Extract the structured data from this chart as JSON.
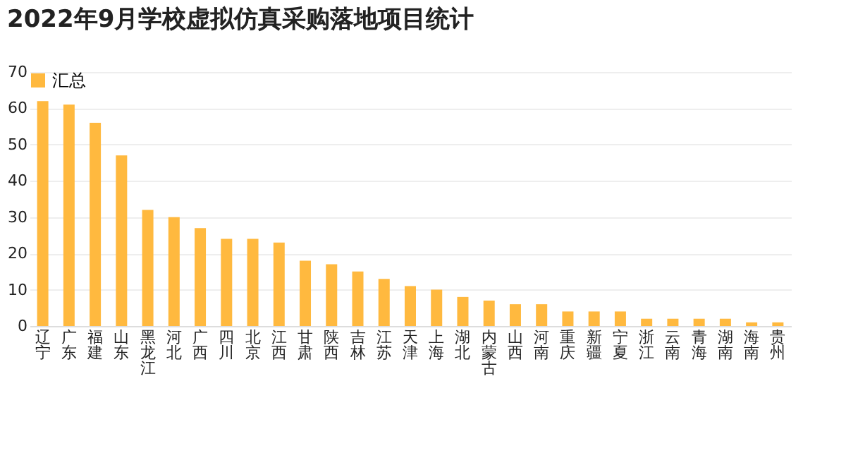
{
  "chart_data": {
    "type": "bar",
    "title": "2022年9月学校虚拟仿真采购落地项目统计",
    "categories": [
      "辽宁",
      "广东",
      "福建",
      "山东",
      "黑龙江",
      "河北",
      "广西",
      "四川",
      "北京",
      "江西",
      "甘肃",
      "陕西",
      "吉林",
      "江苏",
      "天津",
      "上海",
      "湖北",
      "内蒙古",
      "山西",
      "河南",
      "重庆",
      "新疆",
      "宁夏",
      "浙江",
      "云南",
      "青海",
      "湖南",
      "海南",
      "贵州"
    ],
    "series": [
      {
        "name": "汇总",
        "color": "#ffb93f",
        "values": [
          62,
          61,
          56,
          47,
          32,
          30,
          27,
          24,
          24,
          23,
          18,
          17,
          15,
          13,
          11,
          10,
          8,
          7,
          6,
          6,
          4,
          4,
          4,
          2,
          2,
          2,
          2,
          1,
          1
        ]
      }
    ],
    "ylim": [
      0,
      70
    ],
    "yticks": [
      0,
      10,
      20,
      30,
      40,
      50,
      60,
      70
    ],
    "grid": "y",
    "legend": "top left"
  }
}
